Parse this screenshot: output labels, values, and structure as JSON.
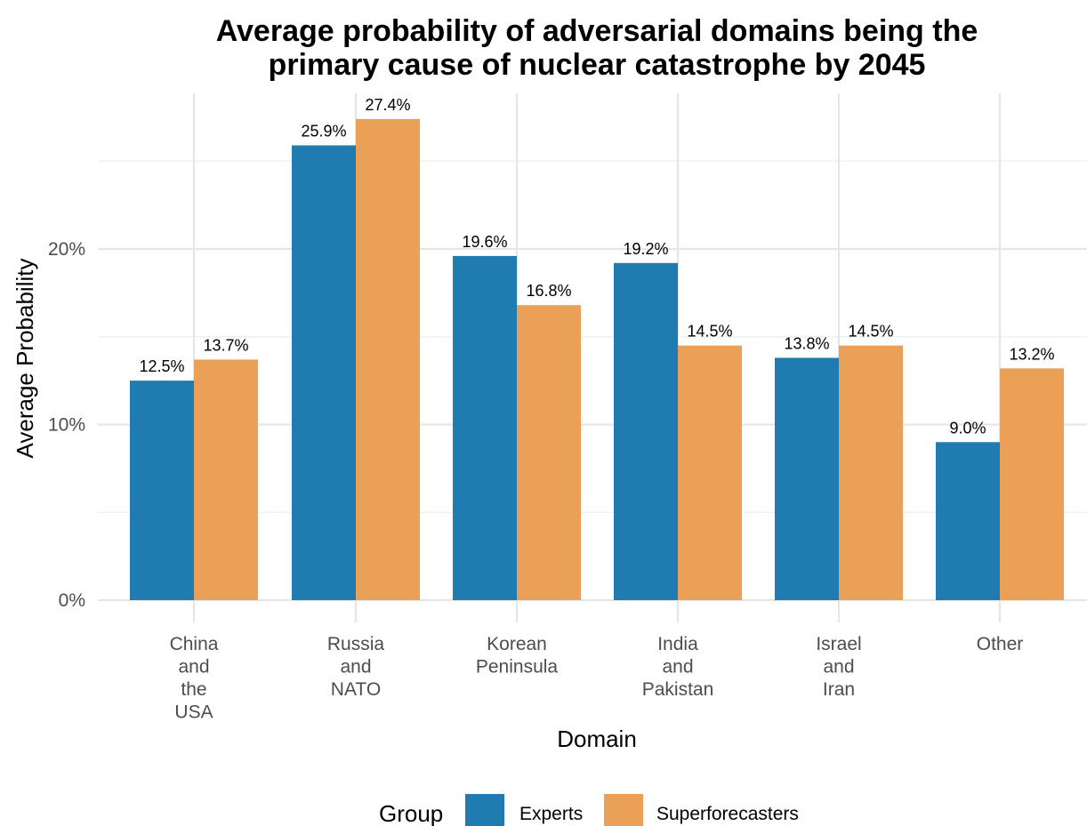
{
  "chart_data": {
    "type": "bar",
    "title_lines": [
      "Average probability of adversarial domains being the",
      "primary cause of nuclear catastrophe by 2045"
    ],
    "xlabel": "Domain",
    "ylabel": "Average Probability",
    "ylim": [
      0,
      30
    ],
    "yticks": [
      {
        "value": 0,
        "label": "0%"
      },
      {
        "value": 10,
        "label": "10%"
      },
      {
        "value": 20,
        "label": "20%"
      }
    ],
    "grid": true,
    "legend": {
      "title": "Group",
      "position": "bottom"
    },
    "categories": [
      [
        "China",
        "and",
        "the",
        "USA"
      ],
      [
        "Russia",
        "and",
        "NATO"
      ],
      [
        "Korean",
        "Peninsula"
      ],
      [
        "India",
        "and",
        "Pakistan"
      ],
      [
        "Israel",
        "and",
        "Iran"
      ],
      [
        "Other"
      ]
    ],
    "series": [
      {
        "name": "Experts",
        "color": "#1f7bb0",
        "values": [
          12.5,
          25.9,
          19.6,
          19.2,
          13.8,
          9.0
        ],
        "labels": [
          "12.5%",
          "25.9%",
          "19.6%",
          "19.2%",
          "13.8%",
          "9.0%"
        ]
      },
      {
        "name": "Superforecasters",
        "color": "#eba057",
        "values": [
          13.7,
          27.4,
          16.8,
          14.5,
          14.5,
          13.2
        ],
        "labels": [
          "13.7%",
          "27.4%",
          "16.8%",
          "14.5%",
          "14.5%",
          "13.2%"
        ]
      }
    ]
  }
}
